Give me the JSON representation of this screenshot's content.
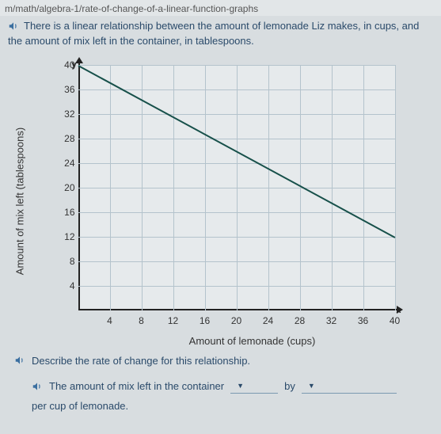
{
  "url": "m/math/algebra-1/rate-of-change-of-a-linear-function-graphs",
  "intro_line1": "There is a linear relationship between the amount of lemonade Liz makes, in cups, and",
  "intro_line2": "the amount of mix left in the container, in tablespoons.",
  "chart": {
    "type": "line",
    "y_axis_symbol": "y",
    "x_axis_symbol": "x",
    "ylabel": "Amount of mix left (tablespoons)",
    "xlabel": "Amount of lemonade (cups)",
    "xlim": [
      0,
      40
    ],
    "ylim": [
      0,
      40
    ],
    "xtick_step": 4,
    "ytick_step": 4,
    "xtick_labels": [
      4,
      8,
      12,
      16,
      20,
      24,
      28,
      32,
      36,
      40
    ],
    "ytick_labels": [
      4,
      8,
      12,
      16,
      20,
      24,
      28,
      32,
      36,
      40
    ],
    "grid_color": "#b4c3cc",
    "background_color": "#e6eaec",
    "axis_color": "#222222",
    "line_color": "#17504a",
    "line_width": 2,
    "data_start": {
      "x": 0,
      "y": 40
    },
    "data_end": {
      "x": 40,
      "y": 12
    },
    "label_fontsize": 13,
    "tick_fontsize": 12
  },
  "question_text": "Describe the rate of change for this relationship.",
  "answer": {
    "prefix": "The amount of mix left in the container",
    "dropdown1_visible": "",
    "connector": "by",
    "dropdown2_visible": "",
    "suffix": "per cup of lemonade."
  }
}
